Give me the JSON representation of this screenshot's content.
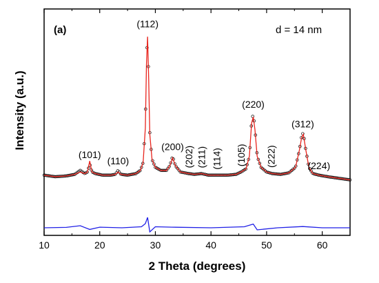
{
  "chart_data": {
    "type": "line",
    "title": "",
    "panel_label": "(a)",
    "annotation": "d = 14 nm",
    "xlabel": "2 Theta (degrees)",
    "ylabel": "Intensity (a.u.)",
    "xlim": [
      10,
      65
    ],
    "xticks": [
      "10",
      "20",
      "30",
      "40",
      "50",
      "60"
    ],
    "y_ticks_shown": false,
    "grid": false,
    "legend": "none",
    "colors": {
      "observed": "#000000",
      "calculated": "#e8231c",
      "difference": "#1f1fe6"
    },
    "peak_labels": [
      {
        "hkl": "(101)",
        "x": 18.2,
        "vertical": false
      },
      {
        "hkl": "(110)",
        "x": 23.3,
        "vertical": false
      },
      {
        "hkl": "(112)",
        "x": 28.6,
        "vertical": false
      },
      {
        "hkl": "(200)",
        "x": 33.1,
        "vertical": false
      },
      {
        "hkl": "(202)",
        "x": 36.0,
        "vertical": true
      },
      {
        "hkl": "(211)",
        "x": 38.3,
        "vertical": true
      },
      {
        "hkl": "(114)",
        "x": 41.0,
        "vertical": true
      },
      {
        "hkl": "(105)",
        "x": 45.4,
        "vertical": true
      },
      {
        "hkl": "(220)",
        "x": 47.6,
        "vertical": false
      },
      {
        "hkl": "(222)",
        "x": 50.8,
        "vertical": true
      },
      {
        "hkl": "(312)",
        "x": 56.5,
        "vertical": false
      },
      {
        "hkl": "(224)",
        "x": 59.4,
        "vertical": false
      }
    ],
    "series": [
      {
        "role": "observed",
        "style": "open-circles",
        "x": [
          10,
          12,
          14,
          15.5,
          16.5,
          17.3,
          17.8,
          18.2,
          18.6,
          19.2,
          20.5,
          22,
          22.8,
          23.3,
          23.8,
          25,
          26.5,
          27.3,
          27.8,
          28.2,
          28.4,
          28.6,
          28.8,
          29.0,
          29.4,
          30,
          31,
          32,
          32.6,
          33.1,
          33.6,
          34.5,
          36,
          37,
          38.3,
          39.5,
          41,
          43,
          44.5,
          45.4,
          46.3,
          46.9,
          47.3,
          47.6,
          47.9,
          48.3,
          49,
          50,
          51,
          52.5,
          54,
          55.2,
          55.9,
          56.3,
          56.6,
          57,
          57.6,
          58.3,
          59.4,
          61,
          63,
          65
        ],
        "y": [
          8,
          7,
          7.5,
          8.5,
          11,
          9,
          10,
          15,
          10,
          9,
          8,
          8,
          8.5,
          11,
          8.5,
          8,
          9,
          11,
          16,
          40,
          80,
          98,
          70,
          35,
          18,
          13,
          11,
          11,
          14,
          20,
          14,
          10,
          9,
          8.5,
          9,
          8,
          8,
          8,
          8.5,
          10,
          12,
          20,
          42,
          47,
          38,
          20,
          13,
          10,
          9,
          8.5,
          9.5,
          13,
          24,
          33,
          35,
          25,
          13,
          9,
          8,
          7,
          6,
          5
        ]
      },
      {
        "role": "calculated",
        "style": "line",
        "x": [
          10,
          12,
          14,
          15.5,
          16.5,
          17.3,
          17.8,
          18.2,
          18.6,
          19.2,
          20.5,
          22,
          22.8,
          23.3,
          23.8,
          25,
          26.5,
          27.3,
          27.8,
          28.2,
          28.4,
          28.6,
          28.8,
          29.0,
          29.4,
          30,
          31,
          32,
          32.6,
          33.1,
          33.6,
          34.5,
          36,
          37,
          38.3,
          39.5,
          41,
          43,
          44.5,
          45.4,
          46.3,
          46.9,
          47.3,
          47.6,
          47.9,
          48.3,
          49,
          50,
          51,
          52.5,
          54,
          55.2,
          55.9,
          56.3,
          56.6,
          57,
          57.6,
          58.3,
          59.4,
          61,
          63,
          65
        ],
        "y": [
          8,
          7,
          7.5,
          8.5,
          10,
          9,
          10,
          17,
          10,
          9,
          8,
          8,
          8.5,
          10,
          8.5,
          8,
          9,
          11,
          16,
          38,
          78,
          96,
          69,
          34,
          18,
          13,
          11,
          11,
          14,
          19,
          14,
          10,
          9,
          8.5,
          9,
          8,
          8,
          8,
          8.5,
          10,
          12,
          20,
          41,
          45,
          37,
          20,
          13,
          10,
          9,
          8.5,
          9.5,
          13,
          24,
          32,
          34,
          25,
          13,
          9,
          8,
          7,
          6,
          5
        ]
      },
      {
        "role": "difference",
        "style": "line",
        "x": [
          10,
          14,
          16.5,
          18.2,
          20,
          24,
          27.5,
          28.2,
          28.6,
          29.0,
          30,
          33,
          40,
          46,
          47.6,
          48.3,
          52,
          56.5,
          60,
          65
        ],
        "y": [
          0,
          0.2,
          1,
          -0.8,
          0.3,
          0,
          0.5,
          2,
          5,
          -2,
          0.5,
          0.3,
          0,
          0.5,
          1.8,
          -1,
          0,
          0.6,
          0,
          0
        ]
      }
    ]
  }
}
